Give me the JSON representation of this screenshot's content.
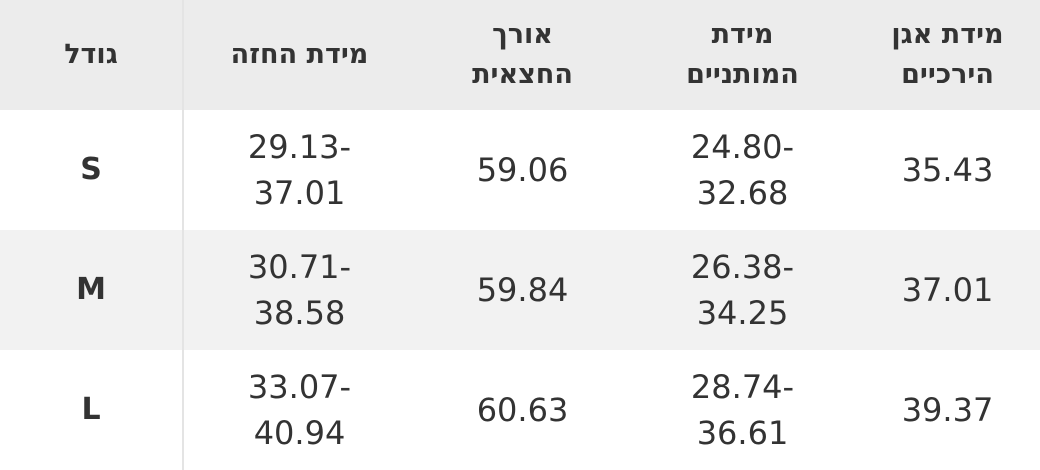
{
  "table": {
    "headers": [
      "גודל",
      "מידת החזה",
      "אורך החצאית",
      "מידת המותניים",
      "מידת אגן הירכיים"
    ],
    "rows": [
      [
        "S",
        "29.13-37.01",
        "59.06",
        "24.80-32.68",
        "35.43"
      ],
      [
        "M",
        "30.71-38.58",
        "59.84",
        "26.38-34.25",
        "37.01"
      ],
      [
        "L",
        "33.07-40.94",
        "60.63",
        "28.74-36.61",
        "39.37"
      ]
    ]
  }
}
